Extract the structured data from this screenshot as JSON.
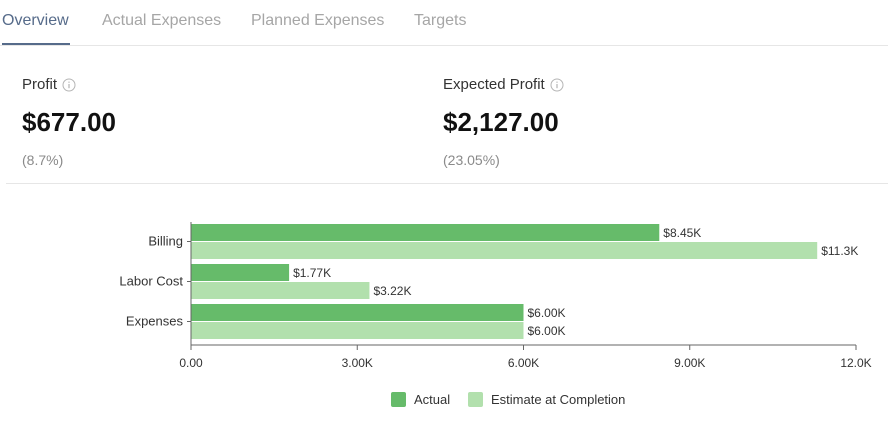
{
  "tabs": [
    {
      "label": "Overview",
      "active": true
    },
    {
      "label": "Actual Expenses",
      "active": false
    },
    {
      "label": "Planned Expenses",
      "active": false
    },
    {
      "label": "Targets",
      "active": false
    }
  ],
  "metrics": {
    "profit": {
      "label": "Profit",
      "value": "$677.00",
      "percent": "(8.7%)"
    },
    "expected_profit": {
      "label": "Expected Profit",
      "value": "$2,127.00",
      "percent": "(23.05%)"
    }
  },
  "colors": {
    "actual": "#66bb6a",
    "estimate": "#b2e0ad",
    "accent": "#566b8a"
  },
  "chart_data": {
    "type": "bar",
    "orientation": "horizontal",
    "categories": [
      "Billing",
      "Labor Cost",
      "Expenses"
    ],
    "series": [
      {
        "name": "Actual",
        "values": [
          8450,
          1770,
          6000
        ],
        "labels": [
          "$8.45K",
          "$1.77K",
          "$6.00K"
        ]
      },
      {
        "name": "Estimate at Completion",
        "values": [
          11300,
          3220,
          6000
        ],
        "labels": [
          "$11.3K",
          "$3.22K",
          "$6.00K"
        ]
      }
    ],
    "xlim": [
      0,
      12000
    ],
    "x_ticks": [
      0,
      3000,
      6000,
      9000,
      12000
    ],
    "x_tick_labels": [
      "0.00",
      "3.00K",
      "6.00K",
      "9.00K",
      "12.0K"
    ],
    "legend_position": "bottom-center",
    "grid": false
  }
}
